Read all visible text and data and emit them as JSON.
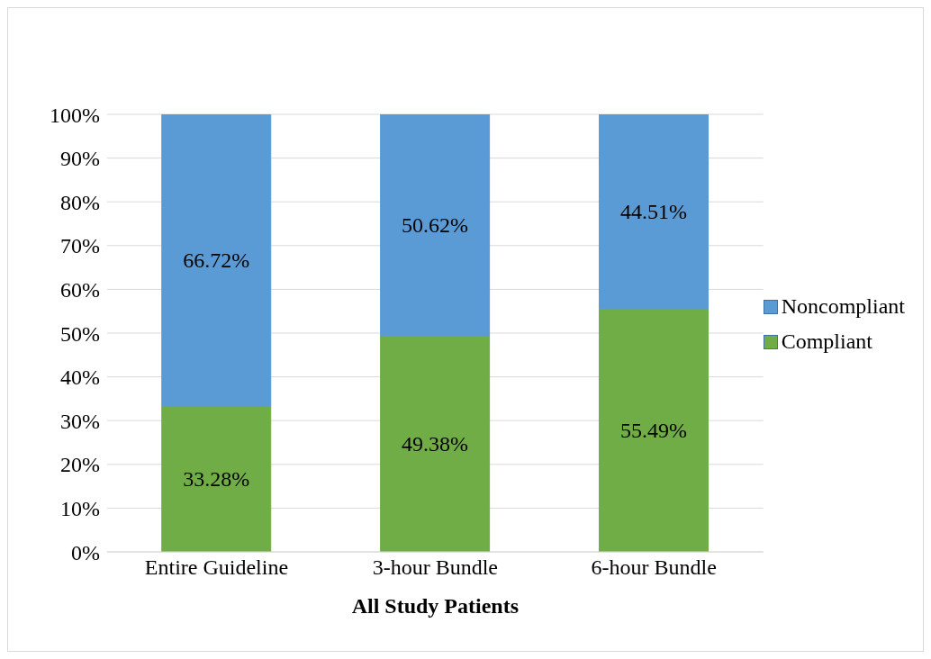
{
  "chart_data": {
    "type": "bar",
    "stacked": true,
    "xlabel": "All Study Patients",
    "categories": [
      "Entire Guideline",
      "3-hour Bundle",
      "6-hour Bundle"
    ],
    "series": [
      {
        "name": "Compliant",
        "color": "#70ad47",
        "values": [
          33.28,
          49.38,
          55.49
        ],
        "value_labels": [
          "33.28%",
          "49.38%",
          "55.49%"
        ]
      },
      {
        "name": "Noncompliant",
        "color": "#5b9bd5",
        "values": [
          66.72,
          50.62,
          44.51
        ],
        "value_labels": [
          "66.72%",
          "50.62%",
          "44.51%"
        ]
      }
    ],
    "ylim": [
      0,
      100
    ],
    "yticks": [
      {
        "value": 0,
        "label": "0%"
      },
      {
        "value": 10,
        "label": "10%"
      },
      {
        "value": 20,
        "label": "20%"
      },
      {
        "value": 30,
        "label": "30%"
      },
      {
        "value": 40,
        "label": "40%"
      },
      {
        "value": 50,
        "label": "50%"
      },
      {
        "value": 60,
        "label": "60%"
      },
      {
        "value": 70,
        "label": "70%"
      },
      {
        "value": 80,
        "label": "80%"
      },
      {
        "value": 90,
        "label": "90%"
      },
      {
        "value": 100,
        "label": "100%"
      }
    ],
    "grid": "y",
    "legend": "right"
  }
}
